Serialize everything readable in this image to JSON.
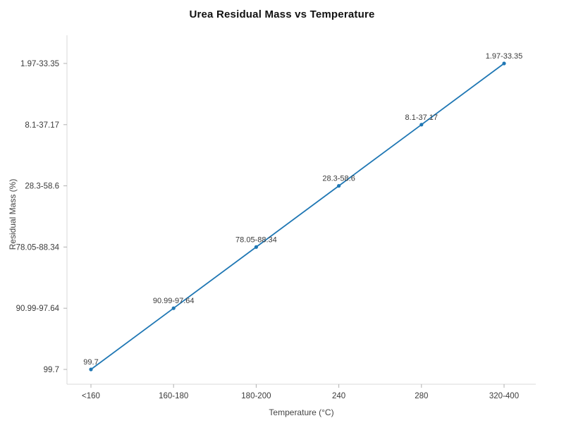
{
  "chart": {
    "title": "Urea Residual Mass vs Temperature",
    "xlabel": "Temperature (°C)",
    "ylabel": "Residual Mass (%)"
  },
  "chart_data": {
    "type": "line",
    "title": "Urea Residual Mass vs Temperature",
    "xlabel": "Temperature (°C)",
    "ylabel": "Residual Mass (%)",
    "categories": [
      "<160",
      "160-180",
      "180-200",
      "240",
      "280",
      "320-400"
    ],
    "y_tick_labels": [
      "99.7",
      "90.99-97.64",
      "78.05-88.34",
      "28.3-58.6",
      "8.1-37.17",
      "1.97-33.35"
    ],
    "series": [
      {
        "name": "Residual Mass",
        "color": "#1f77b4",
        "points": [
          {
            "x": "<160",
            "y": "99.7",
            "label": "99.7"
          },
          {
            "x": "160-180",
            "y": "90.99-97.64",
            "label": "90.99-97.64"
          },
          {
            "x": "180-200",
            "y": "78.05-88.34",
            "label": "78.05-88.34"
          },
          {
            "x": "240",
            "y": "28.3-58.6",
            "label": "28.3-58.6"
          },
          {
            "x": "280",
            "y": "8.1-37.17",
            "label": "8.1-37.17"
          },
          {
            "x": "320-400",
            "y": "1.97-33.35",
            "label": "1.97-33.35"
          }
        ]
      }
    ],
    "legend": false,
    "grid": false,
    "background": "#ffffff",
    "axis_color": "#d9d9d9",
    "tick_color": "#b0b0b0",
    "text_color": "#3b3b3b"
  }
}
